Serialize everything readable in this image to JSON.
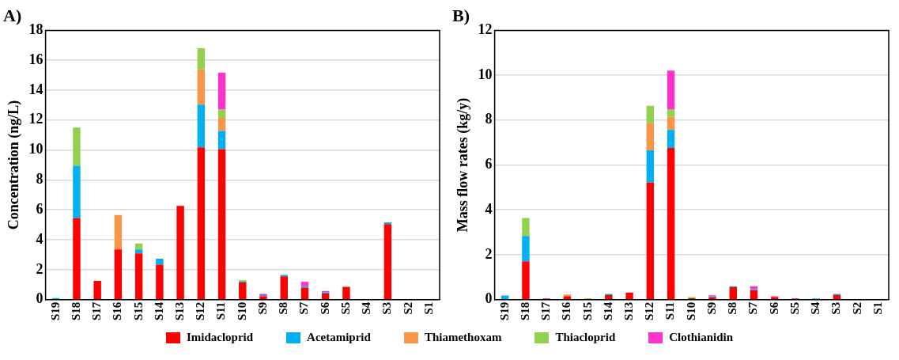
{
  "chart_data": [
    {
      "type": "bar",
      "title": "A)",
      "ylabel": "Concentration (ng/L)",
      "stacked": true,
      "grid": "y",
      "legend": "bottom",
      "categories": [
        "S19",
        "S18",
        "S17",
        "S16",
        "S15",
        "S14",
        "S13",
        "S12",
        "S11",
        "S10",
        "S9",
        "S8",
        "S7",
        "S6",
        "S5",
        "S4",
        "S3",
        "S2",
        "S1"
      ],
      "ylim": [
        0,
        18
      ],
      "yticks": [
        0,
        2,
        4,
        6,
        8,
        10,
        12,
        14,
        16,
        18
      ],
      "series": [
        {
          "name": "Imidacloprid",
          "color": "#ff0000",
          "values": [
            0,
            5.45,
            1.25,
            3.36,
            3.09,
            2.34,
            6.27,
            10.18,
            10.06,
            1.15,
            0.22,
            1.55,
            0.8,
            0.4,
            0.85,
            0,
            5.05,
            0,
            0
          ]
        },
        {
          "name": "Acetamiprid",
          "color": "#00b0f0",
          "values": [
            0.1,
            3.5,
            0,
            0,
            0.27,
            0.39,
            0,
            2.85,
            1.21,
            0.05,
            0.08,
            0.1,
            0.1,
            0.08,
            0,
            0,
            0.12,
            0,
            0
          ]
        },
        {
          "name": "Thiamethoxam",
          "color": "#f79646",
          "values": [
            0,
            0,
            0,
            2.3,
            0,
            0,
            0,
            2.36,
            0.88,
            0,
            0,
            0,
            0,
            0,
            0,
            0,
            0,
            0,
            0
          ]
        },
        {
          "name": "Thiacloprid",
          "color": "#92d050",
          "values": [
            0,
            2.55,
            0,
            0,
            0.39,
            0,
            0,
            1.41,
            0.55,
            0.1,
            0,
            0,
            0,
            0,
            0,
            0,
            0,
            0,
            0
          ]
        },
        {
          "name": "Clothianidin",
          "color": "#ff33cc",
          "values": [
            0,
            0,
            0,
            0,
            0,
            0,
            0,
            0,
            2.48,
            0,
            0.08,
            0,
            0.28,
            0.1,
            0,
            0,
            0,
            0,
            0
          ]
        }
      ]
    },
    {
      "type": "bar",
      "title": "B)",
      "ylabel": "Mass flow rates (kg/y)",
      "stacked": true,
      "grid": "y",
      "categories": [
        "S19",
        "S18",
        "S17",
        "S16",
        "S15",
        "S14",
        "S13",
        "S12",
        "S11",
        "S10",
        "S9",
        "S8",
        "S7",
        "S6",
        "S5",
        "S4",
        "S3",
        "S2",
        "S1"
      ],
      "ylim": [
        0,
        12
      ],
      "yticks": [
        0,
        2,
        4,
        6,
        8,
        10,
        12
      ],
      "series": [
        {
          "color": "#ff0000",
          "values": [
            0,
            1.71,
            0.05,
            0.15,
            0,
            0.2,
            0.31,
            5.22,
            6.76,
            0.06,
            0.1,
            0.55,
            0.42,
            0.1,
            0.05,
            0,
            0.2,
            0,
            0
          ]
        },
        {
          "color": "#00b0f0",
          "values": [
            0.18,
            1.13,
            0,
            0,
            0,
            0.05,
            0,
            1.43,
            0.8,
            0,
            0.04,
            0.05,
            0.05,
            0,
            0,
            0.05,
            0.05,
            0,
            0
          ]
        },
        {
          "color": "#f79646",
          "values": [
            0,
            0,
            0,
            0.08,
            0,
            0,
            0,
            1.23,
            0.59,
            0,
            0,
            0,
            0,
            0,
            0,
            0,
            0,
            0,
            0
          ]
        },
        {
          "color": "#92d050",
          "values": [
            0,
            0.8,
            0,
            0,
            0.06,
            0,
            0,
            0.76,
            0.34,
            0.05,
            0,
            0,
            0,
            0,
            0,
            0,
            0,
            0,
            0
          ]
        },
        {
          "color": "#ff33cc",
          "values": [
            0,
            0,
            0,
            0,
            0,
            0,
            0,
            0,
            1.72,
            0,
            0.05,
            0,
            0.13,
            0.05,
            0,
            0,
            0,
            0,
            0
          ]
        }
      ]
    }
  ]
}
